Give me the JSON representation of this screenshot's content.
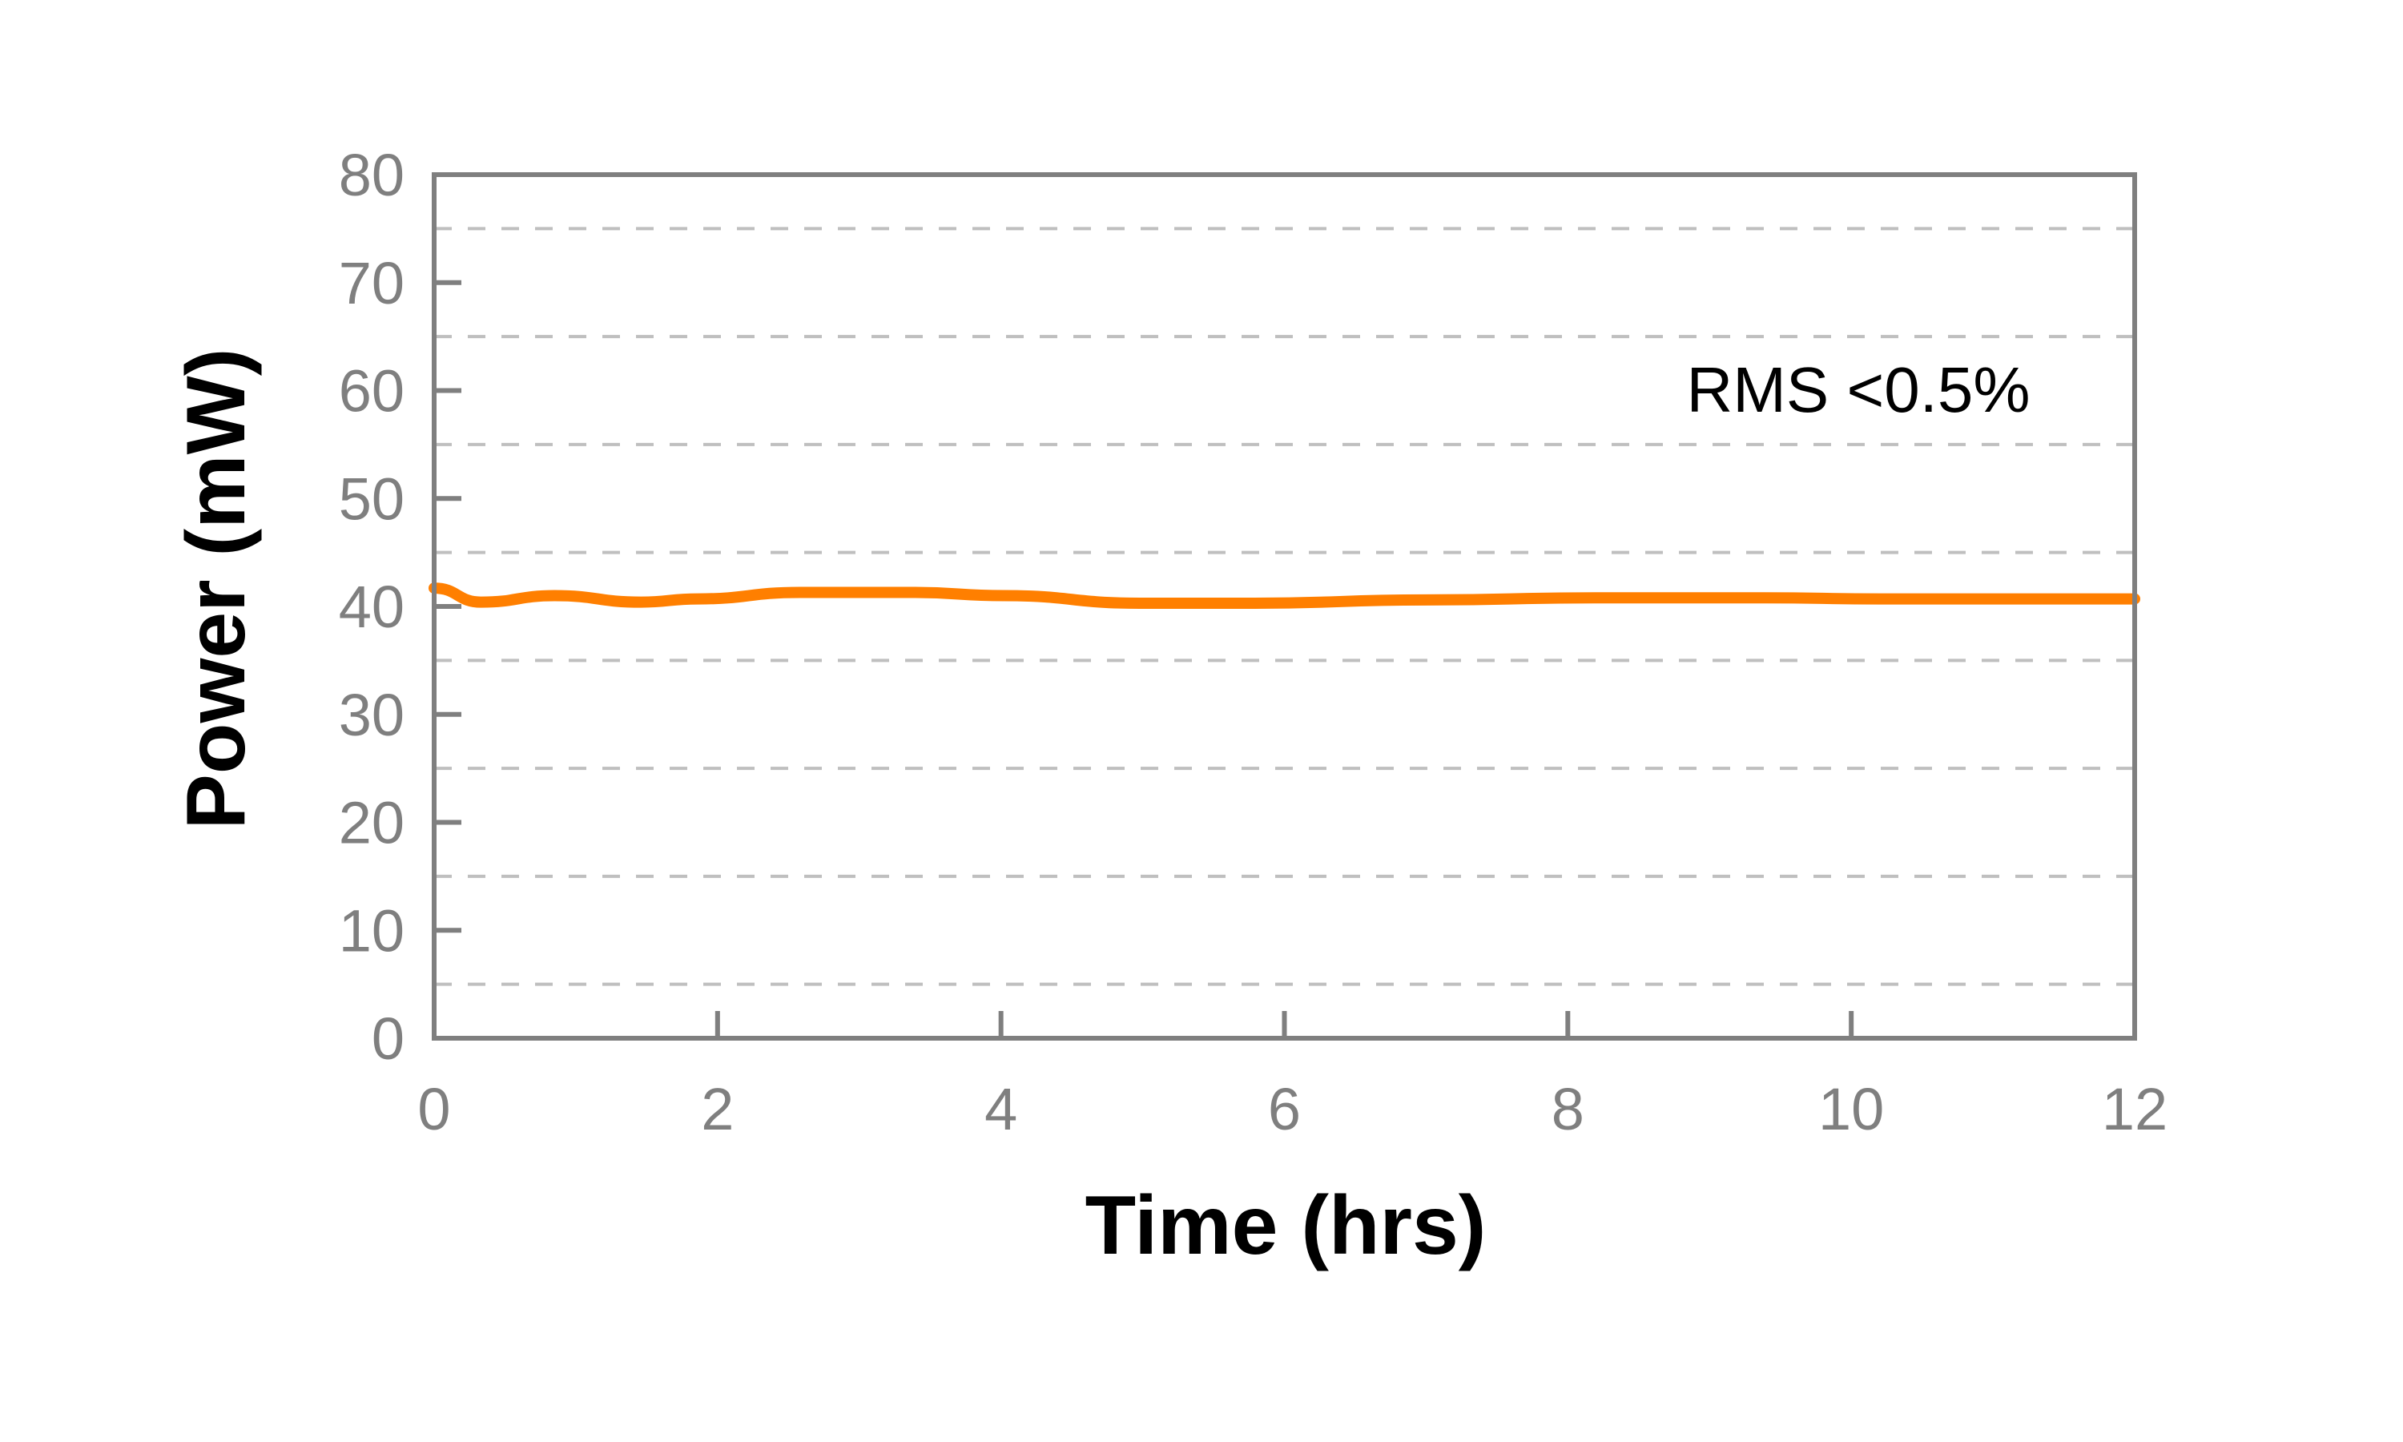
{
  "chart_data": {
    "type": "line",
    "xlabel": "Time (hrs)",
    "ylabel": "Power (mW)",
    "xlim": [
      0,
      12
    ],
    "ylim": [
      0,
      80
    ],
    "xticks": [
      "0",
      "2",
      "4",
      "6",
      "8",
      "10",
      "12"
    ],
    "yticks": [
      "0",
      "10",
      "20",
      "30",
      "40",
      "50",
      "60",
      "70",
      "80"
    ],
    "grid": {
      "horizontal": true,
      "style": "dashed",
      "values": [
        5,
        15,
        25,
        35,
        45,
        55,
        65,
        75
      ]
    },
    "annotation": "RMS <0.5%",
    "series": [
      {
        "color": "#ff7f00",
        "x": [
          0,
          0.33,
          0.85,
          1.46,
          1.86,
          2.58,
          3.38,
          4.02,
          4.98,
          5.79,
          6.99,
          8.19,
          9.39,
          10.2,
          12
        ],
        "y": [
          41.7,
          40.4,
          41.0,
          40.4,
          40.7,
          41.3,
          41.3,
          41.0,
          40.3,
          40.3,
          40.6,
          40.8,
          40.8,
          40.7,
          40.7
        ]
      }
    ],
    "colors": {
      "axis": "#7f7f7f",
      "grid": "#bfbfbf",
      "line": "#ff7f00"
    }
  }
}
